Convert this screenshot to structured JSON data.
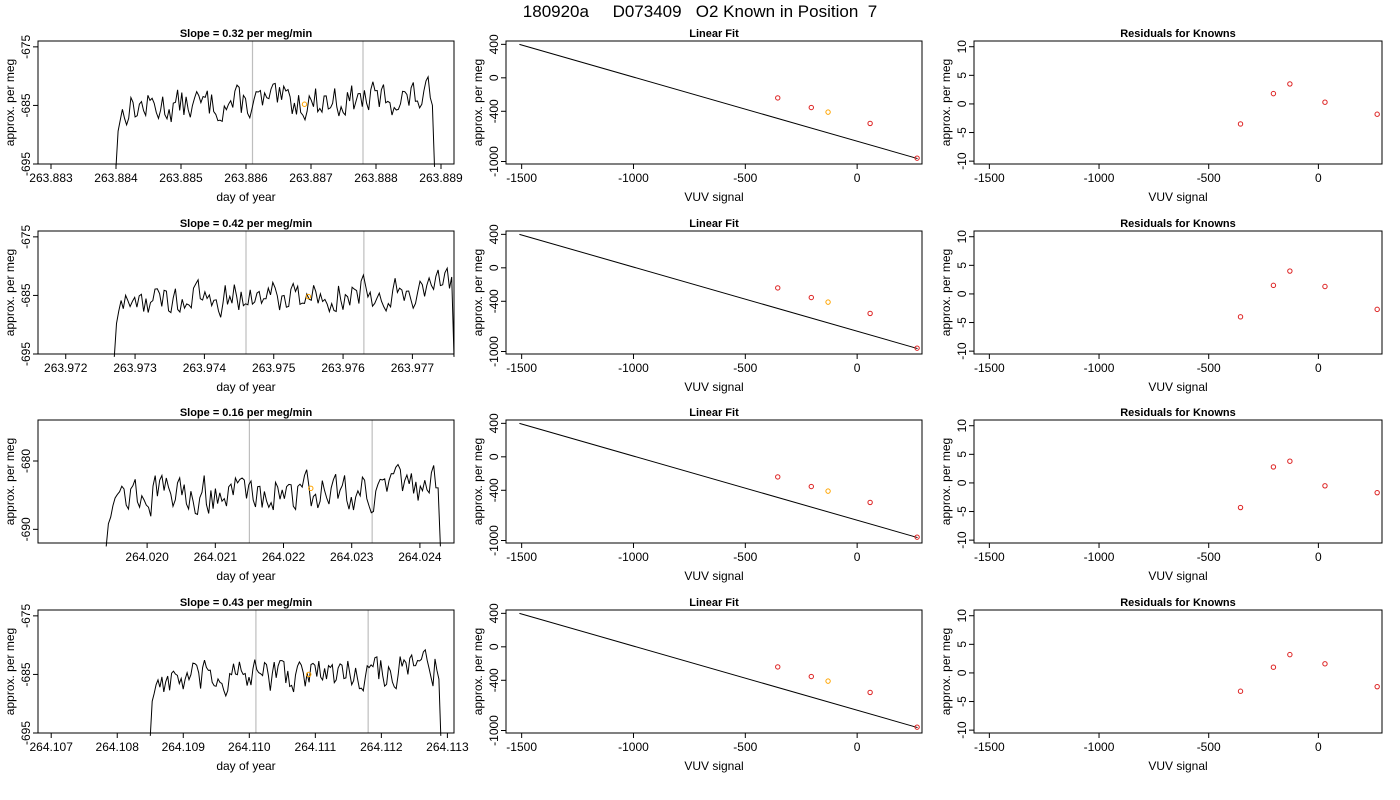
{
  "figure_title": "180920a     D073409   O2 Known in Position  7",
  "colors": {
    "trace": "#000000",
    "marker_orange": "#FFA500",
    "marker_red": "#DD2222",
    "vline": "#BEBEBE"
  },
  "chart_data": [
    {
      "type": "line",
      "panel": "timeseries",
      "title": "Slope =  0.32  per meg/min",
      "xlabel": "day of year",
      "ylabel": "approx. per meg",
      "xlim": [
        263.8828,
        263.8892
      ],
      "ylim": [
        -695,
        -674
      ],
      "xticks": [
        "263.883",
        "263.884",
        "263.885",
        "263.886",
        "263.887",
        "263.888",
        "263.889"
      ],
      "yticks": [
        "-675",
        "-685",
        "-695"
      ],
      "vlines": [
        263.8861,
        263.8878
      ],
      "highlight": [
        263.8869,
        -684.8
      ],
      "trace_start": 263.884,
      "trace_end": 263.8889,
      "trace_level": -684.5,
      "trace_trend": 1.8
    },
    {
      "type": "line",
      "panel": "timeseries",
      "title": "Slope =  0.42  per meg/min",
      "xlabel": "day of year",
      "ylabel": "approx. per meg",
      "xlim": [
        263.9716,
        263.9776
      ],
      "ylim": [
        -695,
        -674
      ],
      "xticks": [
        "263.972",
        "263.973",
        "263.974",
        "263.975",
        "263.976",
        "263.977"
      ],
      "yticks": [
        "-675",
        "-685",
        "-695"
      ],
      "vlines": [
        263.9746,
        263.9763
      ],
      "highlight": [
        263.9755,
        -685.2
      ],
      "trace_start": 263.9727,
      "trace_end": 263.9776,
      "trace_level": -685.0,
      "trace_trend": 2.4
    },
    {
      "type": "line",
      "panel": "timeseries",
      "title": "Slope =  0.16  per meg/min",
      "xlabel": "day of year",
      "ylabel": "approx. per meg",
      "xlim": [
        264.0184,
        264.0245
      ],
      "ylim": [
        -692,
        -674
      ],
      "xticks": [
        "264.020",
        "264.021",
        "264.022",
        "264.023",
        "264.024"
      ],
      "xtick_values": [
        264.02,
        264.021,
        264.022,
        264.023,
        264.024
      ],
      "yticks": [
        "-680",
        "-690"
      ],
      "vlines": [
        264.0215,
        264.0233
      ],
      "highlight": [
        264.0224,
        -684.0
      ],
      "trace_start": 264.0194,
      "trace_end": 264.0243,
      "trace_level": -684.5,
      "trace_trend": 1.0
    },
    {
      "type": "line",
      "panel": "timeseries",
      "title": "Slope =  0.43  per meg/min",
      "xlabel": "day of year",
      "ylabel": "approx. per meg",
      "xlim": [
        264.1068,
        264.1131
      ],
      "ylim": [
        -695,
        -674
      ],
      "xticks": [
        "264.107",
        "264.108",
        "264.109",
        "264.110",
        "264.111",
        "264.112",
        "264.113"
      ],
      "yticks": [
        "-675",
        "-685",
        "-695"
      ],
      "vlines": [
        264.1101,
        264.1118
      ],
      "highlight": [
        264.1109,
        -685.0
      ],
      "trace_start": 264.1085,
      "trace_end": 264.1129,
      "trace_level": -685.0,
      "trace_trend": 2.5
    },
    {
      "type": "scatter",
      "panel": "linear_fit",
      "title": "Linear Fit",
      "xlabel": "VUV signal",
      "ylabel": "approx. per meg",
      "xlim": [
        -1570,
        290
      ],
      "ylim": [
        -1030,
        440
      ],
      "xticks": [
        "-1500",
        "-1000",
        "-500",
        "0"
      ],
      "yticks": [
        "400",
        "0",
        "-400",
        "-1000"
      ],
      "fit_line": [
        [
          -1510,
          400
        ],
        [
          270,
          -965
        ]
      ],
      "points": [
        [
          -355,
          -240
        ],
        [
          -205,
          -355
        ],
        [
          -130,
          -410
        ],
        [
          58,
          -545
        ],
        [
          268,
          -960
        ]
      ],
      "orange_index": 2
    },
    {
      "type": "scatter",
      "panel": "linear_fit",
      "title": "Linear Fit",
      "xlabel": "VUV signal",
      "ylabel": "approx. per meg",
      "xlim": [
        -1570,
        290
      ],
      "ylim": [
        -1030,
        440
      ],
      "xticks": [
        "-1500",
        "-1000",
        "-500",
        "0"
      ],
      "yticks": [
        "400",
        "0",
        "-400",
        "-1000"
      ],
      "fit_line": [
        [
          -1510,
          400
        ],
        [
          270,
          -965
        ]
      ],
      "points": [
        [
          -355,
          -240
        ],
        [
          -205,
          -355
        ],
        [
          -130,
          -410
        ],
        [
          58,
          -545
        ],
        [
          268,
          -960
        ]
      ],
      "orange_index": 2
    },
    {
      "type": "scatter",
      "panel": "linear_fit",
      "title": "Linear Fit",
      "xlabel": "VUV signal",
      "ylabel": "approx. per meg",
      "xlim": [
        -1570,
        290
      ],
      "ylim": [
        -1030,
        440
      ],
      "xticks": [
        "-1500",
        "-1000",
        "-500",
        "0"
      ],
      "yticks": [
        "400",
        "0",
        "-400",
        "-1000"
      ],
      "fit_line": [
        [
          -1510,
          400
        ],
        [
          270,
          -965
        ]
      ],
      "points": [
        [
          -355,
          -240
        ],
        [
          -205,
          -355
        ],
        [
          -130,
          -410
        ],
        [
          58,
          -545
        ],
        [
          268,
          -960
        ]
      ],
      "orange_index": 2
    },
    {
      "type": "scatter",
      "panel": "linear_fit",
      "title": "Linear Fit",
      "xlabel": "VUV signal",
      "ylabel": "approx. per meg",
      "xlim": [
        -1570,
        290
      ],
      "ylim": [
        -1030,
        440
      ],
      "xticks": [
        "-1500",
        "-1000",
        "-500",
        "0"
      ],
      "yticks": [
        "400",
        "0",
        "-400",
        "-1000"
      ],
      "fit_line": [
        [
          -1510,
          400
        ],
        [
          270,
          -965
        ]
      ],
      "points": [
        [
          -355,
          -240
        ],
        [
          -205,
          -355
        ],
        [
          -130,
          -410
        ],
        [
          58,
          -545
        ],
        [
          268,
          -960
        ]
      ],
      "orange_index": 2
    },
    {
      "type": "scatter",
      "panel": "residuals",
      "title": "Residuals for Knowns",
      "xlabel": "VUV signal",
      "ylabel": "approx. per meg",
      "xlim": [
        -1570,
        290
      ],
      "ylim": [
        -10.5,
        11
      ],
      "xticks": [
        "-1500",
        "-1000",
        "-500",
        "0"
      ],
      "yticks": [
        "10",
        "5",
        "0",
        "-5",
        "-10"
      ],
      "points": [
        [
          -355,
          -3.5
        ],
        [
          -205,
          1.8
        ],
        [
          -130,
          3.5
        ],
        [
          30,
          0.3
        ],
        [
          268,
          -1.8
        ]
      ]
    },
    {
      "type": "scatter",
      "panel": "residuals",
      "title": "Residuals for Knowns",
      "xlabel": "VUV signal",
      "ylabel": "approx. per meg",
      "xlim": [
        -1570,
        290
      ],
      "ylim": [
        -10.5,
        11
      ],
      "xticks": [
        "-1500",
        "-1000",
        "-500",
        "0"
      ],
      "yticks": [
        "10",
        "5",
        "0",
        "-5",
        "-10"
      ],
      "points": [
        [
          -355,
          -4.0
        ],
        [
          -205,
          1.5
        ],
        [
          -130,
          4.0
        ],
        [
          30,
          1.3
        ],
        [
          268,
          -2.7
        ]
      ]
    },
    {
      "type": "scatter",
      "panel": "residuals",
      "title": "Residuals for Knowns",
      "xlabel": "VUV signal",
      "ylabel": "approx. per meg",
      "xlim": [
        -1570,
        290
      ],
      "ylim": [
        -10.5,
        11
      ],
      "xticks": [
        "-1500",
        "-1000",
        "-500",
        "0"
      ],
      "yticks": [
        "10",
        "5",
        "0",
        "-5",
        "-10"
      ],
      "points": [
        [
          -355,
          -4.3
        ],
        [
          -205,
          2.8
        ],
        [
          -130,
          3.8
        ],
        [
          30,
          -0.5
        ],
        [
          268,
          -1.7
        ]
      ]
    },
    {
      "type": "scatter",
      "panel": "residuals",
      "title": "Residuals for Knowns",
      "xlabel": "VUV signal",
      "ylabel": "approx. per meg",
      "xlim": [
        -1570,
        290
      ],
      "ylim": [
        -10.5,
        11
      ],
      "xticks": [
        "-1500",
        "-1000",
        "-500",
        "0"
      ],
      "yticks": [
        "10",
        "5",
        "0",
        "-5",
        "-10"
      ],
      "points": [
        [
          -355,
          -3.2
        ],
        [
          -205,
          1.0
        ],
        [
          -130,
          3.2
        ],
        [
          30,
          1.6
        ],
        [
          268,
          -2.4
        ]
      ]
    }
  ]
}
